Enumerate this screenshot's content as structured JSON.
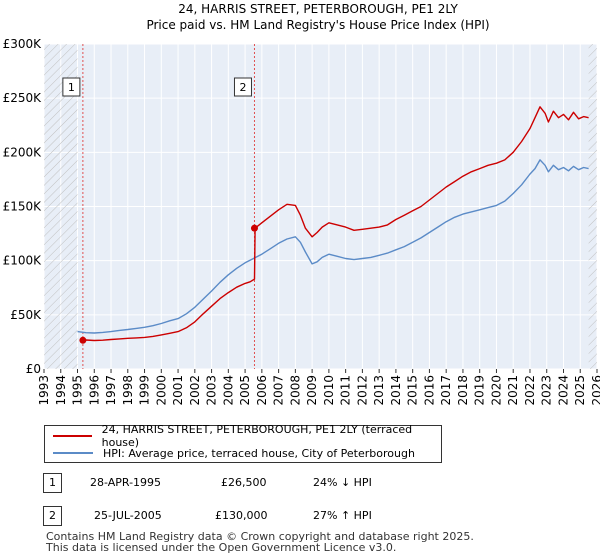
{
  "chart_data": {
    "type": "line",
    "title": "24, HARRIS STREET, PETERBOROUGH, PE1 2LY",
    "subtitle": "Price paid vs. HM Land Registry's House Price Index (HPI)",
    "xlabel": "",
    "ylabel": "",
    "xlim": [
      1993,
      2026
    ],
    "ylim": [
      0,
      300000
    ],
    "x_ticks": [
      "1993",
      "1994",
      "1995",
      "1996",
      "1997",
      "1998",
      "1999",
      "2000",
      "2001",
      "2002",
      "2003",
      "2004",
      "2005",
      "2006",
      "2007",
      "2008",
      "2009",
      "2010",
      "2011",
      "2012",
      "2013",
      "2014",
      "2015",
      "2016",
      "2017",
      "2018",
      "2019",
      "2020",
      "2021",
      "2022",
      "2023",
      "2024",
      "2025",
      "2026"
    ],
    "y_ticks": [
      {
        "value": 0,
        "label": "£0"
      },
      {
        "value": 50000,
        "label": "£50K"
      },
      {
        "value": 100000,
        "label": "£100K"
      },
      {
        "value": 150000,
        "label": "£150K"
      },
      {
        "value": 200000,
        "label": "£200K"
      },
      {
        "value": 250000,
        "label": "£250K"
      },
      {
        "value": 300000,
        "label": "£300K"
      }
    ],
    "grid": true,
    "series": [
      {
        "name": "24, HARRIS STREET, PETERBOROUGH, PE1 2LY (terraced house)",
        "color": "#cc0000",
        "x": [
          1995.32,
          1995.5,
          1996,
          1996.5,
          1997,
          1997.5,
          1998,
          1998.5,
          1999,
          1999.5,
          2000,
          2000.5,
          2001,
          2001.5,
          2002,
          2002.5,
          2003,
          2003.5,
          2004,
          2004.5,
          2005,
          2005.3,
          2005.56,
          2005.6,
          2006,
          2006.5,
          2007,
          2007.5,
          2008,
          2008.3,
          2008.6,
          2009,
          2009.3,
          2009.6,
          2010,
          2010.5,
          2011,
          2011.5,
          2012,
          2012.5,
          2013,
          2013.5,
          2014,
          2014.5,
          2015,
          2015.5,
          2016,
          2016.5,
          2017,
          2017.5,
          2018,
          2018.5,
          2019,
          2019.5,
          2020,
          2020.5,
          2021,
          2021.5,
          2022,
          2022.3,
          2022.6,
          2022.9,
          2023.1,
          2023.4,
          2023.7,
          2024,
          2024.3,
          2024.6,
          2024.9,
          2025.2,
          2025.5
        ],
        "y": [
          26500,
          26800,
          26300,
          26600,
          27200,
          27800,
          28300,
          28700,
          29200,
          30100,
          31500,
          33000,
          34500,
          38000,
          43500,
          51000,
          58000,
          65000,
          70500,
          75500,
          79000,
          80500,
          83000,
          130000,
          135000,
          141000,
          147000,
          152000,
          151000,
          142000,
          130000,
          122000,
          126000,
          131000,
          135000,
          133000,
          131000,
          128000,
          129000,
          130000,
          131000,
          133000,
          138000,
          142000,
          146000,
          150000,
          156000,
          162000,
          168000,
          173000,
          178000,
          182000,
          185000,
          188000,
          190000,
          193000,
          200000,
          210000,
          222000,
          232000,
          242000,
          236000,
          228000,
          238000,
          232000,
          235000,
          230000,
          237000,
          231000,
          233000,
          232000
        ]
      },
      {
        "name": "HPI: Average price, terraced house, City of Peterborough",
        "color": "#5b8bc7",
        "x": [
          1995,
          1995.5,
          1996,
          1996.5,
          1997,
          1997.5,
          1998,
          1998.5,
          1999,
          1999.5,
          2000,
          2000.5,
          2001,
          2001.5,
          2002,
          2002.5,
          2003,
          2003.5,
          2004,
          2004.5,
          2005,
          2005.5,
          2006,
          2006.5,
          2007,
          2007.5,
          2008,
          2008.3,
          2008.6,
          2009,
          2009.3,
          2009.6,
          2010,
          2010.5,
          2011,
          2011.5,
          2012,
          2012.5,
          2013,
          2013.5,
          2014,
          2014.5,
          2015,
          2015.5,
          2016,
          2016.5,
          2017,
          2017.5,
          2018,
          2018.5,
          2019,
          2019.5,
          2020,
          2020.5,
          2021,
          2021.5,
          2022,
          2022.3,
          2022.6,
          2022.9,
          2023.1,
          2023.4,
          2023.7,
          2024,
          2024.3,
          2024.6,
          2024.9,
          2025.2,
          2025.5
        ],
        "y": [
          34500,
          33500,
          33200,
          33800,
          34500,
          35600,
          36500,
          37500,
          38500,
          40000,
          42000,
          44500,
          46500,
          51000,
          57000,
          64500,
          72000,
          80000,
          87000,
          93000,
          98000,
          102000,
          106000,
          111000,
          116000,
          120000,
          122000,
          117000,
          108000,
          97000,
          99000,
          103000,
          106000,
          104000,
          102000,
          101000,
          102000,
          103000,
          105000,
          107000,
          110000,
          113000,
          117000,
          121000,
          126000,
          131000,
          136000,
          140000,
          143000,
          145000,
          147000,
          149000,
          151000,
          155000,
          162000,
          170000,
          180000,
          185000,
          193000,
          188000,
          182000,
          188000,
          184000,
          186000,
          183000,
          187000,
          184000,
          186000,
          185000
        ]
      }
    ],
    "annotations": [
      {
        "label": "1",
        "x": 1995.32,
        "price": 26500,
        "date": "28-APR-1995",
        "price_label": "£26,500",
        "hpi": "24% ↓ HPI"
      },
      {
        "label": "2",
        "x": 2005.56,
        "price": 130000,
        "date": "25-JUL-2005",
        "price_label": "£130,000",
        "hpi": "27% ↑ HPI"
      }
    ]
  },
  "footer": {
    "line1": "Contains HM Land Registry data © Crown copyright and database right 2025.",
    "line2": "This data is licensed under the Open Government Licence v3.0."
  },
  "colors": {
    "plot_bg": "#e8eef7",
    "grid": "#ffffff",
    "hatch": "#c8c8c8",
    "marker_line": "#e05050"
  }
}
